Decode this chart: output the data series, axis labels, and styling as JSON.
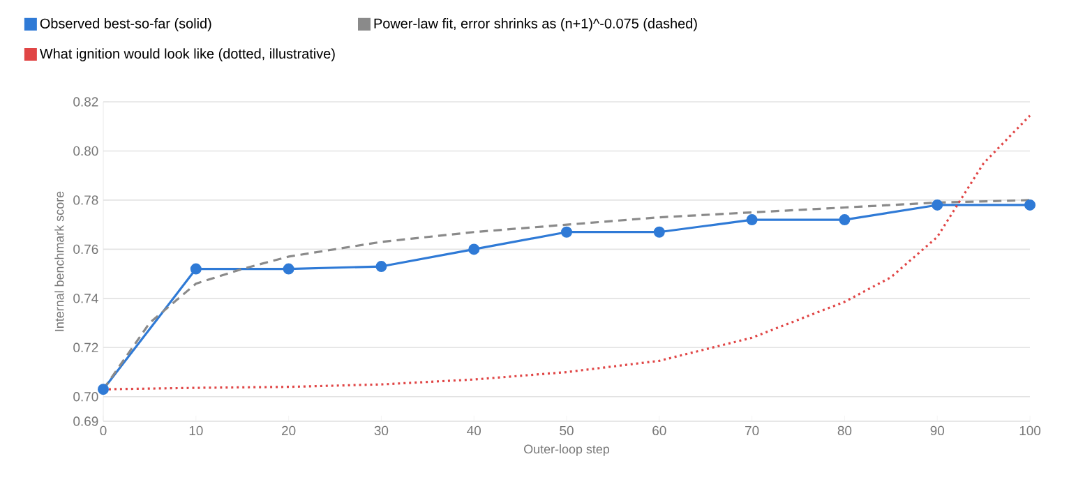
{
  "chart_data": {
    "type": "line",
    "xlabel": "Outer-loop step",
    "ylabel": "Internal benchmark score",
    "xlim": [
      0,
      100
    ],
    "xticks": [
      0,
      10,
      20,
      30,
      40,
      50,
      60,
      70,
      80,
      90,
      100
    ],
    "ylim": [
      0.69,
      0.82
    ],
    "yticks": [
      {
        "value": 0.69,
        "label": "0.69"
      },
      {
        "value": 0.7,
        "label": "0.70"
      },
      {
        "value": 0.72,
        "label": "0.72"
      },
      {
        "value": 0.74,
        "label": "0.74"
      },
      {
        "value": 0.76,
        "label": "0.76"
      },
      {
        "value": 0.78,
        "label": "0.78"
      },
      {
        "value": 0.8,
        "label": "0.80"
      },
      {
        "value": 0.82,
        "label": "0.82"
      }
    ],
    "grid": "y",
    "legend": "top left",
    "series": [
      {
        "name": "Observed best-so-far (solid)",
        "color": "#2f7ad6",
        "line_style": "solid",
        "marker": "circle",
        "x": [
          0,
          10,
          20,
          30,
          40,
          50,
          60,
          70,
          80,
          90,
          100
        ],
        "values": [
          0.703,
          0.752,
          0.752,
          0.753,
          0.76,
          0.767,
          0.767,
          0.772,
          0.772,
          0.778,
          0.778
        ]
      },
      {
        "name": "Power-law fit, error shrinks as (n+1)^-0.075 (dashed)",
        "color": "#8a8a8a",
        "line_style": "dashed",
        "marker": "none",
        "x": [
          0,
          5,
          10,
          15,
          20,
          30,
          40,
          50,
          60,
          70,
          80,
          90,
          100
        ],
        "values": [
          0.703,
          0.73,
          0.746,
          0.752,
          0.757,
          0.763,
          0.767,
          0.77,
          0.773,
          0.775,
          0.777,
          0.779,
          0.78
        ]
      },
      {
        "name": "What ignition would look like (dotted, illustrative)",
        "color": "#e04545",
        "line_style": "dotted",
        "marker": "none",
        "x": [
          0,
          10,
          20,
          30,
          40,
          50,
          60,
          70,
          80,
          85,
          90,
          95,
          100
        ],
        "values": [
          0.703,
          0.7036,
          0.704,
          0.705,
          0.707,
          0.71,
          0.7146,
          0.724,
          0.7386,
          0.7486,
          0.765,
          0.795,
          0.8144
        ]
      }
    ]
  }
}
